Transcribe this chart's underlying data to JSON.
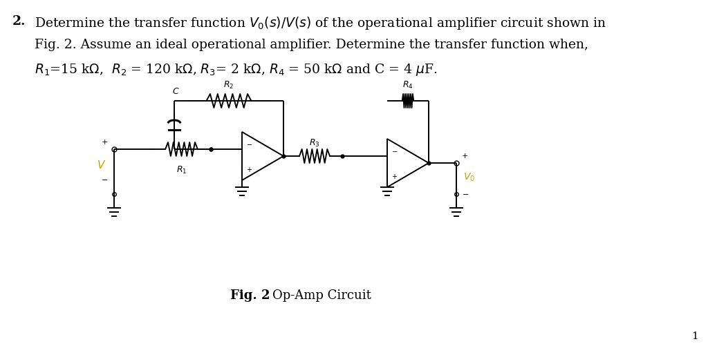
{
  "background_color": "#ffffff",
  "text_color": "#000000",
  "circuit_color": "#000000",
  "highlight_color": "#c8a000",
  "fig_caption_bold": "Fig. 2",
  "fig_caption_normal": " Op-Amp Circuit",
  "page_number": "1"
}
